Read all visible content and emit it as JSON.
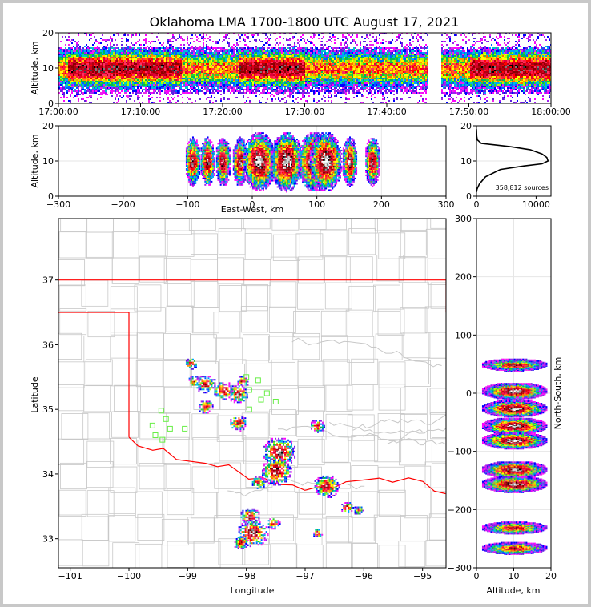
{
  "chart_data": [
    {
      "id": "time_altitude",
      "type": "heatmap",
      "title": "Oklahoma LMA 1700-1800 UTC August 17, 2021",
      "ylabel": "Altitude, km",
      "xlabel": "",
      "x_ticks": [
        "17:00:00",
        "17:10:00",
        "17:20:00",
        "17:30:00",
        "17:40:00",
        "17:50:00",
        "18:00:00"
      ],
      "y_ticks": [
        "0",
        "10",
        "20"
      ],
      "ylim": [
        0,
        20
      ],
      "band_center_km": 10,
      "data_gap_minutes": [
        45,
        46.5
      ],
      "densest_periods_minutes": [
        [
          1,
          15
        ],
        [
          22,
          30
        ],
        [
          50,
          60
        ]
      ]
    },
    {
      "id": "east_west_altitude",
      "type": "heatmap",
      "xlabel": "East-West, km",
      "ylabel": "Altitude, km",
      "x_ticks": [
        "−300",
        "−200",
        "−100",
        "0",
        "100",
        "200",
        "300"
      ],
      "y_ticks": [
        "0",
        "10",
        "20"
      ],
      "xlim": [
        -300,
        300
      ],
      "ylim": [
        0,
        20
      ],
      "cell_centers_km": [
        -93,
        -70,
        -46,
        -20,
        10,
        52,
        95,
        113,
        150,
        185
      ]
    },
    {
      "id": "altitude_histogram",
      "type": "line",
      "annotation": "358,812 sources",
      "x_ticks": [
        "0",
        "10000"
      ],
      "y_ticks": [
        "0",
        "10",
        "20"
      ],
      "xlim": [
        0,
        12000
      ],
      "ylim": [
        0,
        20
      ],
      "points": [
        [
          0,
          19
        ],
        [
          40,
          17
        ],
        [
          150,
          16
        ],
        [
          800,
          15
        ],
        [
          3000,
          14.6
        ],
        [
          6000,
          14.0
        ],
        [
          9000,
          13.2
        ],
        [
          11000,
          12
        ],
        [
          11800,
          11
        ],
        [
          12000,
          10
        ],
        [
          11000,
          9.2
        ],
        [
          8000,
          8.6
        ],
        [
          4000,
          7.6
        ],
        [
          1500,
          5.5
        ],
        [
          500,
          3.5
        ],
        [
          100,
          2
        ],
        [
          0,
          1.2
        ]
      ]
    },
    {
      "id": "map",
      "type": "heatmap",
      "xlabel": "Longitude",
      "ylabel": "Latitude",
      "x_ticks": [
        "−101",
        "−100",
        "−99",
        "−98",
        "−97",
        "−96",
        "−95"
      ],
      "y_ticks": [
        "33",
        "34",
        "35",
        "36",
        "37"
      ],
      "xlim": [
        -101.2,
        -94.6
      ],
      "ylim": [
        32.55,
        37.95
      ],
      "grid": true,
      "storm_cells": [
        {
          "lon": -98.95,
          "lat": 35.72,
          "scale": 0.5
        },
        {
          "lon": -98.9,
          "lat": 35.45,
          "scale": 0.5
        },
        {
          "lon": -98.7,
          "lat": 35.4,
          "scale": 0.8
        },
        {
          "lon": -98.4,
          "lat": 35.3,
          "scale": 0.8
        },
        {
          "lon": -98.15,
          "lat": 35.25,
          "scale": 0.8
        },
        {
          "lon": -98.07,
          "lat": 35.45,
          "scale": 0.5
        },
        {
          "lon": -98.7,
          "lat": 35.05,
          "scale": 0.6
        },
        {
          "lon": -98.15,
          "lat": 34.8,
          "scale": 0.7
        },
        {
          "lon": -96.8,
          "lat": 34.75,
          "scale": 0.6
        },
        {
          "lon": -97.45,
          "lat": 34.35,
          "scale": 1.3
        },
        {
          "lon": -97.5,
          "lat": 34.05,
          "scale": 1.2
        },
        {
          "lon": -97.8,
          "lat": 33.88,
          "scale": 0.6
        },
        {
          "lon": -96.65,
          "lat": 33.82,
          "scale": 1.0
        },
        {
          "lon": -96.3,
          "lat": 33.5,
          "scale": 0.5
        },
        {
          "lon": -96.1,
          "lat": 33.45,
          "scale": 0.4
        },
        {
          "lon": -97.95,
          "lat": 33.35,
          "scale": 0.8
        },
        {
          "lon": -97.9,
          "lat": 33.1,
          "scale": 1.2
        },
        {
          "lon": -98.1,
          "lat": 32.95,
          "scale": 0.6
        },
        {
          "lon": -97.55,
          "lat": 33.25,
          "scale": 0.5
        },
        {
          "lon": -96.8,
          "lat": 33.1,
          "scale": 0.4
        }
      ],
      "stations": [
        [
          -98.0,
          35.5
        ],
        [
          -97.8,
          35.45
        ],
        [
          -97.95,
          35.3
        ],
        [
          -97.65,
          35.25
        ],
        [
          -97.75,
          35.15
        ],
        [
          -97.5,
          35.12
        ],
        [
          -97.95,
          35.0
        ],
        [
          -98.1,
          35.17
        ],
        [
          -99.45,
          34.98
        ],
        [
          -99.37,
          34.85
        ],
        [
          -99.6,
          34.75
        ],
        [
          -99.3,
          34.7
        ],
        [
          -99.05,
          34.7
        ],
        [
          -99.55,
          34.6
        ],
        [
          -99.43,
          34.53
        ]
      ],
      "border_color": "#ff0000",
      "county_color": "#c8c8c8",
      "station_color": "#66ee44"
    },
    {
      "id": "north_south_altitude",
      "type": "heatmap",
      "xlabel": "Altitude, km",
      "ylabel": "North-South, km",
      "x_ticks": [
        "0",
        "10",
        "20"
      ],
      "y_ticks": [
        "−300",
        "−200",
        "−100",
        "0",
        "100",
        "200",
        "300"
      ],
      "xlim": [
        0,
        20
      ],
      "ylim": [
        -300,
        300
      ],
      "cell_centers_km": [
        50,
        5,
        -25,
        -55,
        -80,
        -130,
        -155,
        -230,
        -265
      ]
    }
  ]
}
